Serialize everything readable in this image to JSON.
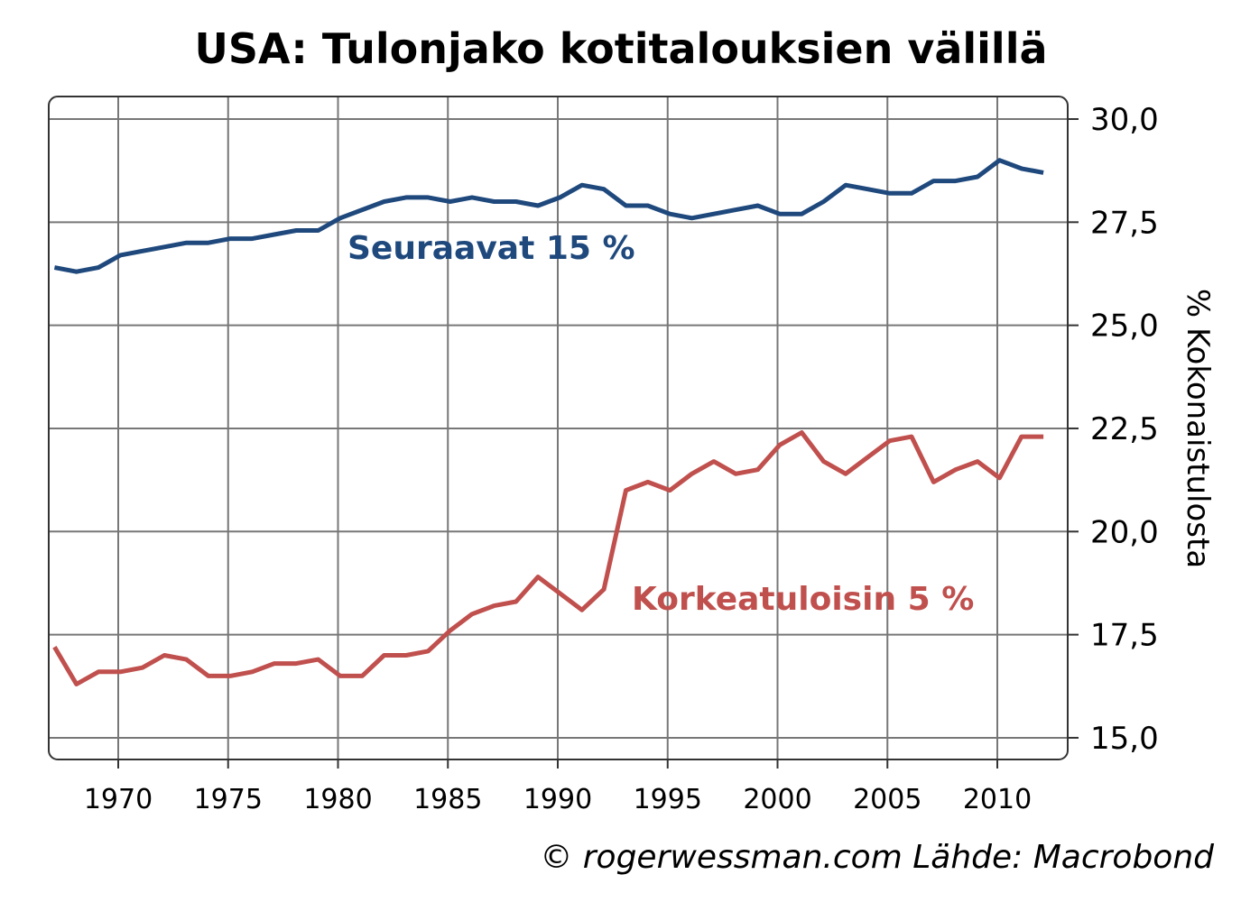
{
  "chart_data": {
    "type": "line",
    "title": "USA: Tulonjako kotitalouksien välillä",
    "xlabel": "",
    "ylabel": "% Kokonaistulosta",
    "ylim": [
      14.5,
      31.0
    ],
    "xlim": [
      1967,
      2013
    ],
    "grid": true,
    "y_ticks": [
      "15,0",
      "17,5",
      "20,0",
      "22,5",
      "25,0",
      "27,5",
      "30,0"
    ],
    "y_tick_values": [
      15,
      17.5,
      20,
      22.5,
      25,
      27.5,
      30
    ],
    "x_ticks": [
      "1970",
      "1975",
      "1980",
      "1985",
      "1990",
      "1995",
      "2000",
      "2005",
      "2010"
    ],
    "x_tick_values": [
      1970,
      1975,
      1980,
      1985,
      1990,
      1995,
      2000,
      2005,
      2010
    ],
    "x": [
      1967,
      1968,
      1969,
      1970,
      1971,
      1972,
      1973,
      1974,
      1975,
      1976,
      1977,
      1978,
      1979,
      1980,
      1981,
      1982,
      1983,
      1984,
      1985,
      1986,
      1987,
      1988,
      1989,
      1990,
      1991,
      1992,
      1993,
      1994,
      1995,
      1996,
      1997,
      1998,
      1999,
      2000,
      2001,
      2002,
      2003,
      2004,
      2005,
      2006,
      2007,
      2008,
      2009,
      2010,
      2011,
      2012
    ],
    "series": [
      {
        "name": "Seuraavat 15 %",
        "color": "#1f497d",
        "values": [
          26.4,
          26.3,
          26.4,
          26.7,
          26.8,
          26.9,
          27.0,
          27.0,
          27.1,
          27.1,
          27.2,
          27.3,
          27.3,
          27.6,
          27.8,
          28.0,
          28.1,
          28.1,
          28.0,
          28.1,
          28.0,
          28.0,
          27.9,
          28.1,
          28.4,
          28.3,
          27.9,
          27.9,
          27.7,
          27.6,
          27.7,
          27.8,
          27.9,
          27.7,
          27.7,
          28.0,
          28.4,
          28.3,
          28.2,
          28.2,
          28.5,
          28.5,
          28.6,
          29.0,
          28.8,
          28.7
        ]
      },
      {
        "name": "Korkeatuloisin 5 %",
        "color": "#c0504d",
        "values": [
          17.2,
          16.3,
          16.6,
          16.6,
          16.7,
          17.0,
          16.9,
          16.5,
          16.5,
          16.6,
          16.8,
          16.8,
          16.9,
          16.5,
          16.5,
          17.0,
          17.0,
          17.1,
          17.6,
          18.0,
          18.2,
          18.3,
          18.9,
          18.5,
          18.1,
          18.6,
          21.0,
          21.2,
          21.0,
          21.4,
          21.7,
          21.4,
          21.5,
          22.1,
          22.4,
          21.7,
          21.4,
          21.8,
          22.2,
          22.3,
          21.2,
          21.5,
          21.7,
          21.3,
          22.3,
          22.3
        ]
      }
    ],
    "source": "© rogerwessman.com Lähde: Macrobond"
  }
}
